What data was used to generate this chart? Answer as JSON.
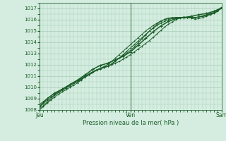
{
  "xlabel": "Pression niveau de la mer( hPa )",
  "ylim": [
    1008,
    1017.5
  ],
  "xlim": [
    0,
    48
  ],
  "yticks": [
    1008,
    1009,
    1010,
    1011,
    1012,
    1013,
    1014,
    1015,
    1016,
    1017
  ],
  "xtick_positions": [
    0,
    24,
    48
  ],
  "xtick_labels": [
    "Jeu",
    "Ven",
    "Sam"
  ],
  "bg_color": "#d4ede0",
  "grid_color": "#a8ccb8",
  "line_color": "#1a5c28",
  "series1_x": [
    0,
    1,
    2,
    3,
    4,
    5,
    6,
    7,
    8,
    9,
    10,
    11,
    12,
    13,
    14,
    15,
    16,
    17,
    18,
    19,
    20,
    21,
    22,
    23,
    24,
    25,
    26,
    27,
    28,
    29,
    30,
    31,
    32,
    33,
    34,
    35,
    36,
    37,
    38,
    39,
    40,
    41,
    42,
    43,
    44,
    45,
    46,
    47,
    48
  ],
  "series1_y": [
    1008.1,
    1008.4,
    1008.7,
    1009.0,
    1009.3,
    1009.55,
    1009.75,
    1009.95,
    1010.15,
    1010.35,
    1010.55,
    1010.75,
    1010.9,
    1011.1,
    1011.3,
    1011.5,
    1011.65,
    1011.8,
    1011.9,
    1012.0,
    1012.15,
    1012.3,
    1012.5,
    1012.7,
    1012.9,
    1013.15,
    1013.4,
    1013.65,
    1013.9,
    1014.15,
    1014.45,
    1014.75,
    1015.05,
    1015.35,
    1015.6,
    1015.8,
    1016.0,
    1016.15,
    1016.25,
    1016.2,
    1016.15,
    1016.05,
    1016.1,
    1016.2,
    1016.3,
    1016.45,
    1016.55,
    1016.75,
    1017.1
  ],
  "series2_x": [
    0,
    1,
    2,
    3,
    4,
    5,
    6,
    7,
    8,
    9,
    10,
    11,
    12,
    13,
    14,
    15,
    16,
    17,
    18,
    19,
    20,
    21,
    22,
    23,
    24,
    25,
    26,
    27,
    28,
    29,
    30,
    31,
    32,
    33,
    34,
    35,
    36,
    37,
    38,
    39,
    40,
    41,
    42,
    43,
    44,
    45,
    46,
    47,
    48
  ],
  "series2_y": [
    1008.5,
    1008.75,
    1009.0,
    1009.25,
    1009.45,
    1009.65,
    1009.85,
    1010.05,
    1010.25,
    1010.45,
    1010.6,
    1010.8,
    1011.0,
    1011.2,
    1011.4,
    1011.55,
    1011.65,
    1011.75,
    1011.9,
    1012.1,
    1012.35,
    1012.6,
    1012.85,
    1013.05,
    1013.3,
    1013.6,
    1013.95,
    1014.3,
    1014.65,
    1015.0,
    1015.3,
    1015.6,
    1015.85,
    1016.05,
    1016.15,
    1016.2,
    1016.2,
    1016.2,
    1016.2,
    1016.2,
    1016.2,
    1016.2,
    1016.25,
    1016.35,
    1016.45,
    1016.55,
    1016.65,
    1016.85,
    1017.1
  ],
  "series3_x": [
    0,
    2,
    4,
    6,
    8,
    10,
    12,
    14,
    16,
    18,
    20,
    22,
    24,
    26,
    28,
    30,
    32,
    34,
    36,
    38,
    40,
    42,
    44,
    46,
    48
  ],
  "series3_y": [
    1008.3,
    1009.0,
    1009.5,
    1009.85,
    1010.25,
    1010.65,
    1011.1,
    1011.6,
    1011.95,
    1012.15,
    1012.45,
    1012.75,
    1013.15,
    1013.75,
    1014.35,
    1014.95,
    1015.45,
    1015.85,
    1016.1,
    1016.2,
    1016.3,
    1016.45,
    1016.55,
    1016.75,
    1017.05
  ],
  "series4_x": [
    0,
    1,
    2,
    3,
    4,
    5,
    6,
    7,
    8,
    9,
    10,
    11,
    12,
    13,
    14,
    15,
    16,
    17,
    18,
    19,
    20,
    21,
    22,
    23,
    24,
    25,
    26,
    27,
    28,
    29,
    30,
    31,
    32,
    33,
    34,
    35,
    36,
    37,
    38,
    39,
    40,
    41,
    42,
    43,
    44,
    45,
    46,
    47,
    48
  ],
  "series4_y": [
    1008.3,
    1008.55,
    1008.85,
    1009.1,
    1009.35,
    1009.55,
    1009.75,
    1009.95,
    1010.15,
    1010.35,
    1010.5,
    1010.7,
    1010.95,
    1011.15,
    1011.35,
    1011.55,
    1011.7,
    1011.85,
    1012.05,
    1012.3,
    1012.6,
    1012.9,
    1013.2,
    1013.5,
    1013.8,
    1014.1,
    1014.4,
    1014.7,
    1015.0,
    1015.25,
    1015.5,
    1015.7,
    1015.9,
    1016.0,
    1016.1,
    1016.15,
    1016.2,
    1016.2,
    1016.2,
    1016.2,
    1016.2,
    1016.2,
    1016.25,
    1016.3,
    1016.4,
    1016.5,
    1016.6,
    1016.8,
    1017.0
  ],
  "series5_x": [
    0,
    1,
    2,
    3,
    4,
    5,
    6,
    7,
    8,
    9,
    10,
    11,
    12,
    13,
    14,
    15,
    16,
    17,
    18,
    19,
    20,
    21,
    22,
    23,
    24,
    25,
    26,
    27,
    28,
    29,
    30,
    31,
    32,
    33,
    34,
    35,
    36,
    37,
    38,
    39,
    40,
    41,
    42,
    43,
    44,
    45,
    46,
    47,
    48
  ],
  "series5_y": [
    1008.0,
    1008.3,
    1008.6,
    1008.9,
    1009.15,
    1009.4,
    1009.6,
    1009.8,
    1010.0,
    1010.2,
    1010.4,
    1010.65,
    1010.95,
    1011.15,
    1011.35,
    1011.55,
    1011.65,
    1011.75,
    1011.85,
    1012.05,
    1012.3,
    1012.6,
    1012.9,
    1013.2,
    1013.5,
    1013.8,
    1014.1,
    1014.4,
    1014.7,
    1015.0,
    1015.25,
    1015.5,
    1015.7,
    1015.85,
    1016.0,
    1016.1,
    1016.15,
    1016.2,
    1016.2,
    1016.2,
    1016.2,
    1016.2,
    1016.25,
    1016.3,
    1016.4,
    1016.5,
    1016.6,
    1016.8,
    1017.0
  ]
}
